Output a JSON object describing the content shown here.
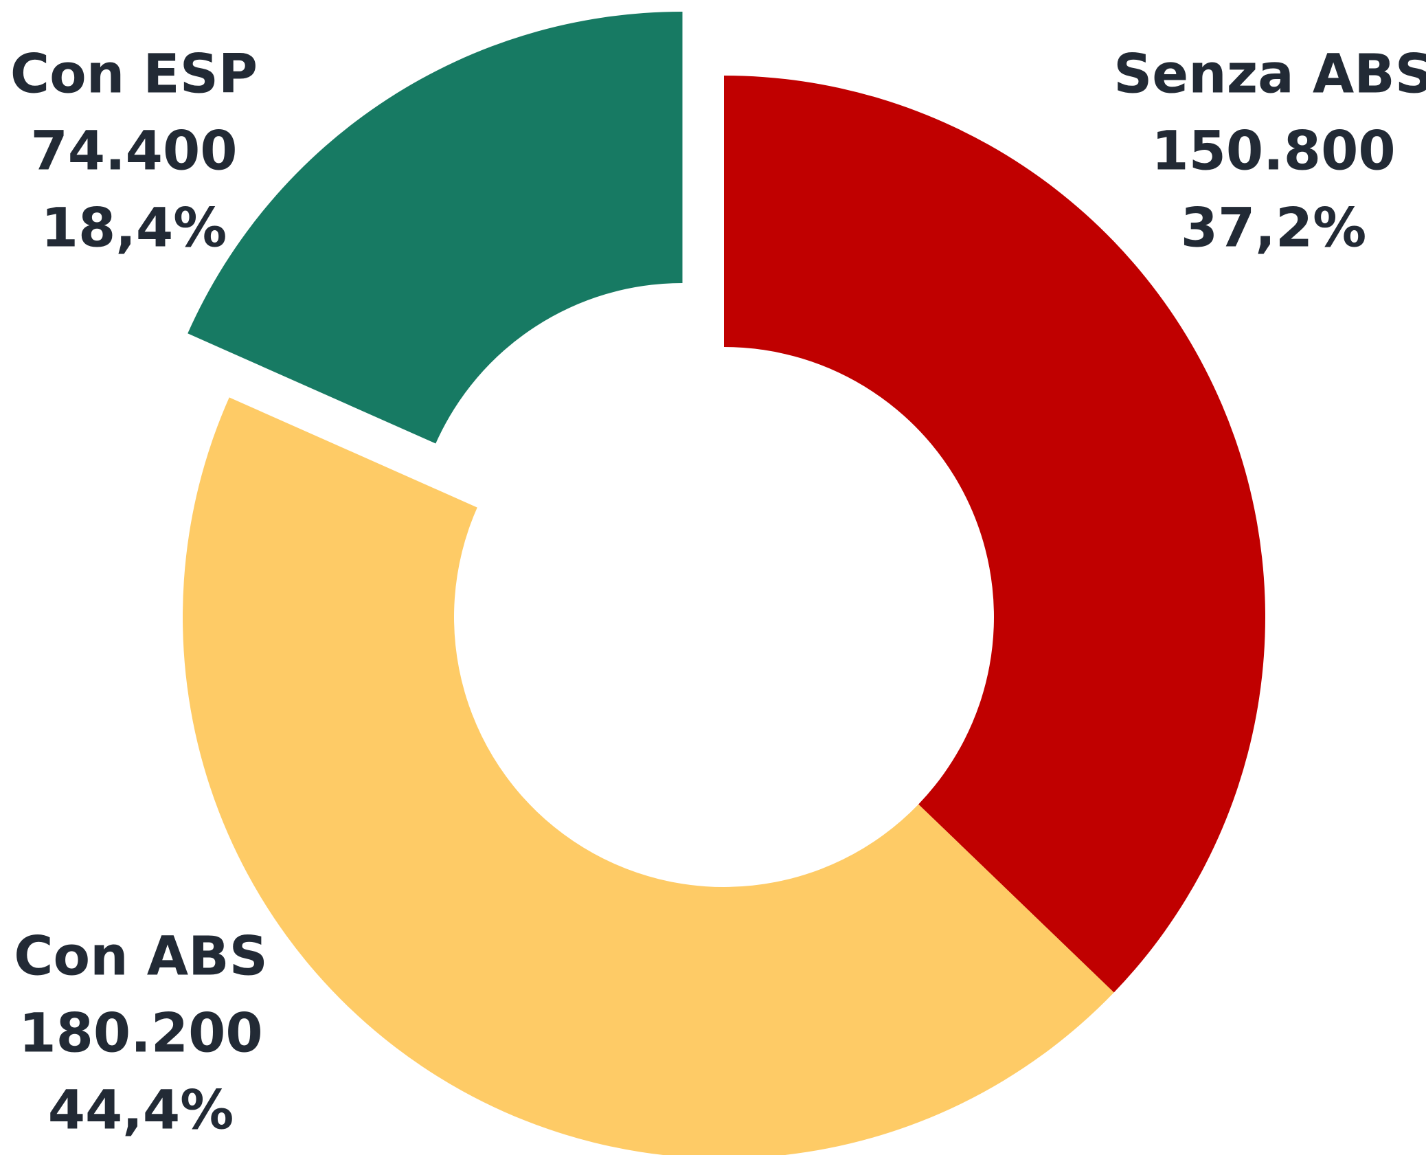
{
  "chart_data": {
    "type": "donut",
    "categories": [
      "Senza ABS",
      "Con ABS",
      "Con ESP"
    ],
    "values": [
      150800,
      180200,
      74400
    ],
    "value_labels": [
      "150.800",
      "180.200",
      "74.400"
    ],
    "percent_labels": [
      "37,2%",
      "44,4%",
      "18,4%"
    ],
    "colors": [
      "#c00000",
      "#fecb66",
      "#177a63"
    ],
    "exploded": [
      false,
      false,
      true
    ]
  }
}
